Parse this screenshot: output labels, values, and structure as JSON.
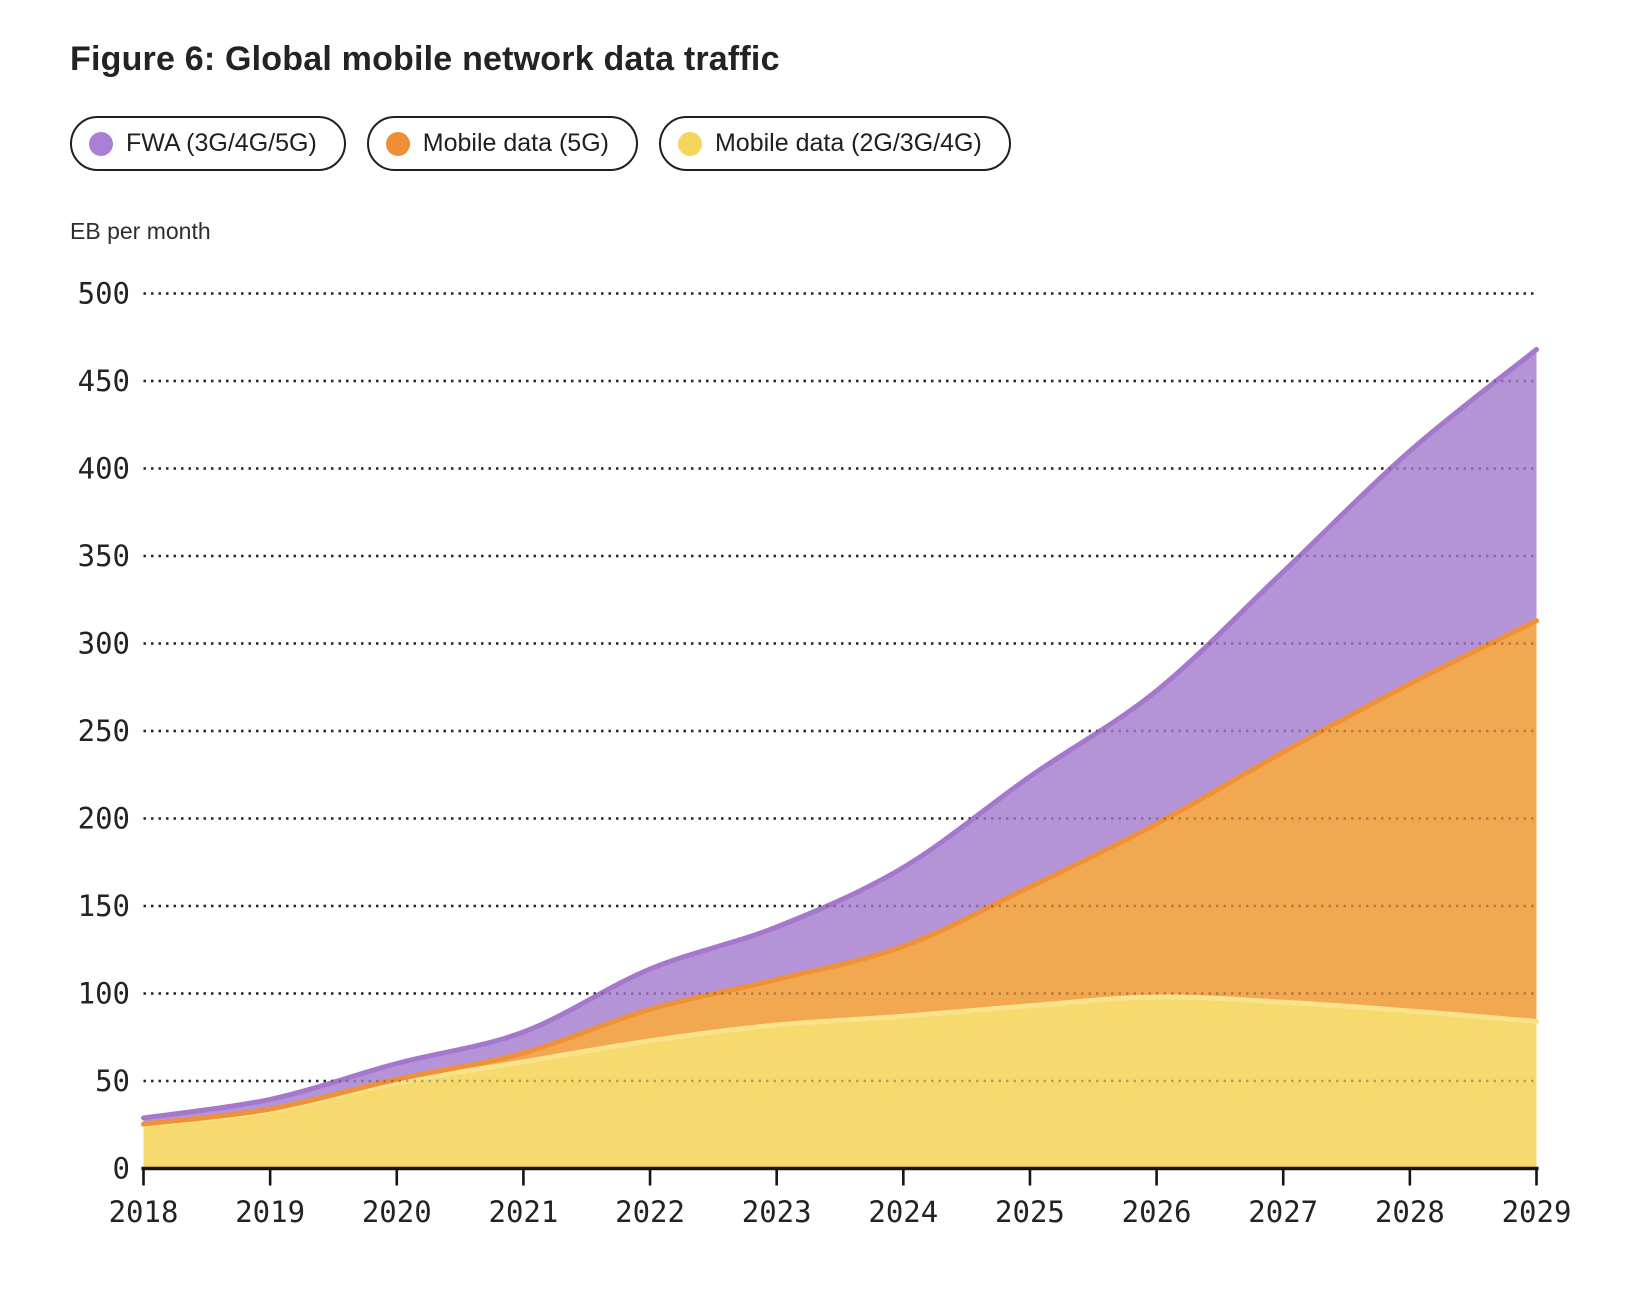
{
  "title": "Figure 6: Global mobile network data traffic",
  "y_axis_label": "EB per month",
  "legend": [
    {
      "label": "FWA (3G/4G/5G)",
      "dot_color": "#aa80d4"
    },
    {
      "label": "Mobile data (5G)",
      "dot_color": "#ef8f35"
    },
    {
      "label": "Mobile data (2G/3G/4G)",
      "dot_color": "#f5d55e"
    }
  ],
  "colors": {
    "axis": "#151515",
    "tick_text": "#232323",
    "gridline": "#2e2e2e",
    "background": "#ffffff"
  },
  "chart_data": {
    "type": "area",
    "stacked": true,
    "title": "Figure 6: Global mobile network data traffic",
    "ylabel": "EB per month",
    "xlabel": "",
    "x": [
      2018,
      2019,
      2020,
      2021,
      2022,
      2023,
      2024,
      2025,
      2026,
      2027,
      2028,
      2029
    ],
    "series": [
      {
        "name": "Mobile data (2G/3G/4G)",
        "fill": "#f6da6e",
        "stroke": "#f8e38a",
        "values": [
          25,
          33,
          49,
          61,
          73,
          82,
          87,
          93,
          98,
          95,
          90,
          84
        ]
      },
      {
        "name": "Mobile data (5G)",
        "fill": "#f2a851",
        "stroke": "#ef9137",
        "values": [
          0.4,
          1,
          2,
          5,
          18,
          26,
          40,
          68,
          99,
          143,
          187,
          229
        ]
      },
      {
        "name": "FWA (3G/4G/5G)",
        "fill": "#b593d7",
        "stroke": "#a678cd",
        "values": [
          3.5,
          5.5,
          9,
          12,
          23,
          30,
          45,
          63,
          76,
          103,
          133,
          155
        ]
      }
    ],
    "totals": [
      28.9,
      39.5,
      60,
      78,
      114,
      138,
      172,
      224,
      273,
      341,
      410,
      468
    ],
    "ylim": [
      0,
      500
    ],
    "yticks": [
      0,
      50,
      100,
      150,
      200,
      250,
      300,
      350,
      400,
      450,
      500
    ],
    "grid": "dotted-horizontal",
    "legend_position": "top"
  }
}
